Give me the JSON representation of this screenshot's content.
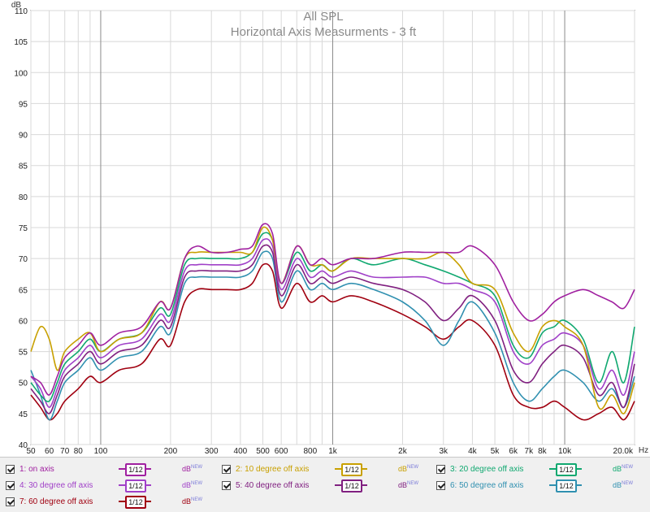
{
  "chart_data": {
    "type": "line",
    "title": "All SPL",
    "subtitle": "Horizontal Axis Measurments - 3 ft",
    "ylabel": "dB",
    "xlabel": "Hz",
    "x_scale": "log",
    "xlim": [
      50,
      20000
    ],
    "ylim": [
      40,
      110
    ],
    "y_ticks": [
      40,
      45,
      50,
      55,
      60,
      65,
      70,
      75,
      80,
      85,
      90,
      95,
      100,
      105,
      110
    ],
    "x_tick_labels": [
      {
        "v": 50,
        "t": "50"
      },
      {
        "v": 60,
        "t": "60"
      },
      {
        "v": 70,
        "t": "70"
      },
      {
        "v": 80,
        "t": "80"
      },
      {
        "v": 100,
        "t": "100"
      },
      {
        "v": 200,
        "t": "200"
      },
      {
        "v": 300,
        "t": "300"
      },
      {
        "v": 400,
        "t": "400"
      },
      {
        "v": 500,
        "t": "500"
      },
      {
        "v": 600,
        "t": "600"
      },
      {
        "v": 800,
        "t": "800"
      },
      {
        "v": 1000,
        "t": "1k"
      },
      {
        "v": 2000,
        "t": "2k"
      },
      {
        "v": 3000,
        "t": "3k"
      },
      {
        "v": 4000,
        "t": "4k"
      },
      {
        "v": 5000,
        "t": "5k"
      },
      {
        "v": 6000,
        "t": "6k"
      },
      {
        "v": 7000,
        "t": "7k"
      },
      {
        "v": 8000,
        "t": "8k"
      },
      {
        "v": 10000,
        "t": "10k"
      },
      {
        "v": 20000,
        "t": "20.0k"
      }
    ],
    "grid": true,
    "legend_position": "bottom",
    "x": [
      50,
      55,
      60,
      65,
      70,
      80,
      90,
      100,
      120,
      150,
      180,
      200,
      230,
      260,
      300,
      350,
      400,
      450,
      500,
      550,
      600,
      700,
      800,
      900,
      1000,
      1200,
      1500,
      2000,
      2500,
      3000,
      3500,
      4000,
      5000,
      6000,
      7000,
      8000,
      9000,
      10000,
      12000,
      14000,
      16000,
      18000,
      20000
    ],
    "series": [
      {
        "name": "1: on axis",
        "color": "#a020a0",
        "values": [
          51,
          50,
          48,
          51,
          54,
          56,
          58,
          56,
          58,
          59,
          63,
          62,
          70,
          72,
          71,
          71,
          71.5,
          72,
          75.5,
          74,
          66,
          72,
          69,
          70,
          69,
          70,
          70,
          71,
          71,
          71,
          71,
          72,
          69,
          63,
          60,
          61,
          63,
          64,
          65,
          64,
          63,
          62,
          65
        ]
      },
      {
        "name": "2: 10 degree off axis",
        "color": "#c8a000",
        "values": [
          55,
          59,
          57,
          52,
          55,
          57,
          58,
          55,
          57,
          58,
          63,
          62,
          70,
          71,
          71,
          71,
          71,
          71,
          75,
          73,
          66,
          72,
          69,
          69,
          68,
          70,
          70,
          70,
          70,
          71,
          69,
          66,
          65,
          58,
          55,
          59,
          60,
          59,
          56,
          46,
          48,
          45,
          50
        ]
      },
      {
        "name": "3: 20 degree off axis",
        "color": "#10a870",
        "values": [
          50,
          48,
          47,
          50,
          53,
          55,
          57,
          55,
          57,
          58,
          62,
          61,
          69,
          70,
          70,
          70,
          70,
          71,
          74,
          73,
          66,
          71,
          68,
          69,
          68,
          70,
          69,
          70,
          69,
          68,
          67,
          66,
          64,
          56,
          54,
          58,
          59,
          60,
          57,
          50,
          55,
          50,
          59
        ]
      },
      {
        "name": "4: 30 degree off axis",
        "color": "#a040c8",
        "values": [
          51,
          49,
          46,
          49,
          52,
          54,
          56,
          54,
          56,
          57,
          61,
          60,
          68,
          69,
          69,
          69,
          69,
          70,
          73,
          72,
          65,
          70,
          67,
          68,
          67,
          68,
          67,
          67,
          67,
          66,
          66,
          65,
          63,
          55,
          53,
          56,
          57,
          58,
          56,
          49,
          52,
          48,
          55
        ]
      },
      {
        "name": "5: 40 degree off axis",
        "color": "#802080",
        "values": [
          49,
          47,
          45,
          48,
          51,
          53,
          55,
          53,
          55,
          56,
          60,
          59,
          67,
          68,
          68,
          68,
          68,
          69,
          72,
          71,
          64,
          69,
          66,
          67,
          66,
          67,
          66,
          65,
          63,
          60,
          62,
          64,
          60,
          52,
          50,
          53,
          55,
          56,
          54,
          48,
          50,
          46,
          53
        ]
      },
      {
        "name": "6: 50 degree off axis",
        "color": "#3090b0",
        "values": [
          52,
          48,
          44,
          47,
          50,
          52,
          54,
          52,
          54,
          55,
          59,
          58,
          66,
          67,
          67,
          67,
          67,
          68,
          71,
          70,
          63,
          68,
          65,
          66,
          65,
          66,
          65,
          63,
          60,
          56,
          60,
          63,
          58,
          50,
          47,
          49,
          51,
          52,
          50,
          47,
          49,
          46,
          51
        ]
      },
      {
        "name": "7: 60 degree off axis",
        "color": "#a00010",
        "values": [
          48,
          46,
          44,
          45,
          47,
          49,
          51,
          50,
          52,
          53,
          57,
          56,
          63,
          65,
          65,
          65,
          65,
          66,
          69,
          68,
          62,
          66,
          63,
          64,
          63,
          64,
          63,
          61,
          59,
          57,
          59,
          60,
          56,
          48,
          46,
          46,
          47,
          46,
          44,
          45,
          46,
          44,
          47
        ]
      }
    ]
  },
  "legend": {
    "smoothing_label": "1/12",
    "db_label": "dB",
    "db_sup": "NEW"
  }
}
